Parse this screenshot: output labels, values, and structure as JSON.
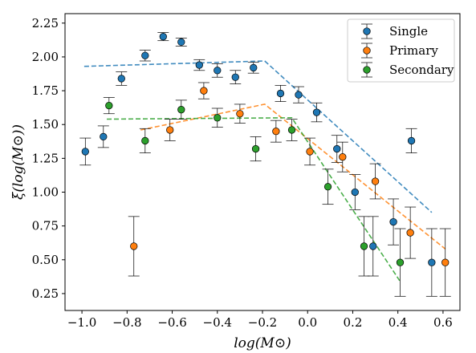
{
  "chart_data": {
    "type": "scatter",
    "xlabel": "log(M⊙)",
    "ylabel": "ξ(log(M⊙))",
    "xlim": [
      -1.075,
      0.675
    ],
    "ylim": [
      0.125,
      2.32
    ],
    "xticks": [
      -1.0,
      -0.8,
      -0.6,
      -0.4,
      -0.2,
      0.0,
      0.2,
      0.4,
      0.6
    ],
    "xtick_labels": [
      "−1.0",
      "−0.8",
      "−0.6",
      "−0.4",
      "−0.2",
      "0.0",
      "0.2",
      "0.4",
      "0.6"
    ],
    "yticks": [
      0.25,
      0.5,
      0.75,
      1.0,
      1.25,
      1.5,
      1.75,
      2.0,
      2.25
    ],
    "ytick_labels": [
      "0.25",
      "0.50",
      "0.75",
      "1.00",
      "1.25",
      "1.50",
      "1.75",
      "2.00",
      "2.25"
    ],
    "grid": false,
    "legend_position": "top-right",
    "series": [
      {
        "name": "Single",
        "color": "#1f77b4",
        "points": [
          {
            "x": -0.985,
            "y": 1.3,
            "err": 0.1
          },
          {
            "x": -0.905,
            "y": 1.41,
            "err": 0.08
          },
          {
            "x": -0.825,
            "y": 1.84,
            "err": 0.05
          },
          {
            "x": -0.72,
            "y": 2.01,
            "err": 0.04
          },
          {
            "x": -0.64,
            "y": 2.15,
            "err": 0.03
          },
          {
            "x": -0.56,
            "y": 2.11,
            "err": 0.03
          },
          {
            "x": -0.48,
            "y": 1.94,
            "err": 0.04
          },
          {
            "x": -0.4,
            "y": 1.9,
            "err": 0.05
          },
          {
            "x": -0.32,
            "y": 1.85,
            "err": 0.05
          },
          {
            "x": -0.24,
            "y": 1.92,
            "err": 0.04
          },
          {
            "x": -0.12,
            "y": 1.73,
            "err": 0.06
          },
          {
            "x": -0.04,
            "y": 1.72,
            "err": 0.06
          },
          {
            "x": 0.04,
            "y": 1.59,
            "err": 0.07
          },
          {
            "x": 0.13,
            "y": 1.32,
            "err": 0.1
          },
          {
            "x": 0.21,
            "y": 1.0,
            "err": 0.13
          },
          {
            "x": 0.29,
            "y": 0.6,
            "err": 0.22
          },
          {
            "x": 0.38,
            "y": 0.78,
            "err": 0.17
          },
          {
            "x": 0.46,
            "y": 1.38,
            "err": 0.09
          },
          {
            "x": 0.55,
            "y": 0.48,
            "err": 0.25
          }
        ]
      },
      {
        "name": "Primary",
        "color": "#ff7f0e",
        "points": [
          {
            "x": -0.77,
            "y": 0.6,
            "err": 0.22
          },
          {
            "x": -0.61,
            "y": 1.46,
            "err": 0.08
          },
          {
            "x": -0.46,
            "y": 1.75,
            "err": 0.06
          },
          {
            "x": -0.3,
            "y": 1.58,
            "err": 0.07
          },
          {
            "x": -0.14,
            "y": 1.45,
            "err": 0.08
          },
          {
            "x": 0.01,
            "y": 1.3,
            "err": 0.1
          },
          {
            "x": 0.155,
            "y": 1.26,
            "err": 0.11
          },
          {
            "x": 0.3,
            "y": 1.08,
            "err": 0.13
          },
          {
            "x": 0.455,
            "y": 0.7,
            "err": 0.19
          },
          {
            "x": 0.61,
            "y": 0.48,
            "err": 0.25
          }
        ]
      },
      {
        "name": "Secondary",
        "color": "#2ca02c",
        "points": [
          {
            "x": -0.88,
            "y": 1.64,
            "err": 0.06
          },
          {
            "x": -0.72,
            "y": 1.38,
            "err": 0.09
          },
          {
            "x": -0.56,
            "y": 1.61,
            "err": 0.07
          },
          {
            "x": -0.4,
            "y": 1.55,
            "err": 0.07
          },
          {
            "x": -0.23,
            "y": 1.32,
            "err": 0.09
          },
          {
            "x": -0.07,
            "y": 1.46,
            "err": 0.08
          },
          {
            "x": 0.09,
            "y": 1.04,
            "err": 0.13
          },
          {
            "x": 0.25,
            "y": 0.6,
            "err": 0.22
          },
          {
            "x": 0.41,
            "y": 0.48,
            "err": 0.25
          }
        ]
      }
    ],
    "fits": [
      {
        "series": "Single",
        "color": "#1f77b4",
        "points": [
          [
            -0.99,
            1.93
          ],
          [
            -0.19,
            1.97
          ],
          [
            0.55,
            0.85
          ]
        ]
      },
      {
        "series": "Primary",
        "color": "#ff7f0e",
        "points": [
          [
            -0.74,
            1.46
          ],
          [
            -0.19,
            1.65
          ],
          [
            0.61,
            0.58
          ]
        ]
      },
      {
        "series": "Secondary",
        "color": "#2ca02c",
        "points": [
          [
            -0.89,
            1.54
          ],
          [
            -0.07,
            1.55
          ],
          [
            0.41,
            0.34
          ]
        ]
      }
    ]
  }
}
